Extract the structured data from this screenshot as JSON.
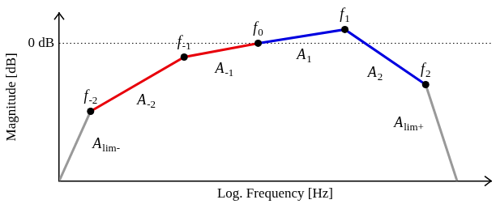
{
  "chart_data": {
    "type": "line",
    "x_label": "Log. Frequency [Hz]",
    "y_label": "Magnitude [dB]",
    "x": [
      0,
      3.7,
      14.7,
      23.4,
      33.6,
      43.1,
      46.8
    ],
    "values": [
      -16,
      -7.9,
      -1.6,
      0,
      1.6,
      -4.8,
      -16
    ],
    "point_labels": [
      null,
      {
        "base": "f",
        "sub": "-2"
      },
      {
        "base": "f",
        "sub": "-1"
      },
      {
        "base": "f",
        "sub": "0"
      },
      {
        "base": "f",
        "sub": "1"
      },
      {
        "base": "f",
        "sub": "2"
      },
      null
    ],
    "segment_labels": [
      {
        "base": "A",
        "sub": "lim-"
      },
      {
        "base": "A",
        "sub": "-2"
      },
      {
        "base": "A",
        "sub": "-1"
      },
      {
        "base": "A",
        "sub": "1"
      },
      {
        "base": "A",
        "sub": "2"
      },
      {
        "base": "A",
        "sub": "lim+"
      }
    ],
    "colors": [
      "#999999",
      "#e8000b",
      "#e8000b",
      "#0000e0",
      "#0000e0",
      "#999999"
    ],
    "marker": "circle",
    "xlim": [
      0,
      50.8
    ],
    "ylim": [
      -16,
      3.5
    ],
    "yticks": [
      {
        "value": 0,
        "label": "0 dB"
      }
    ],
    "tick_labels": "y",
    "grid": true
  }
}
